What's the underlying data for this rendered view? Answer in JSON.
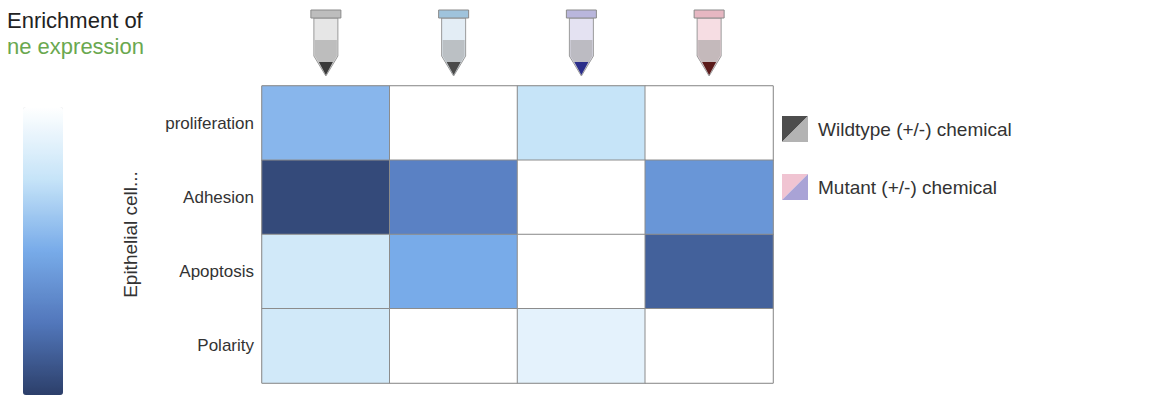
{
  "chart_data": {
    "type": "heatmap",
    "title": "Enrichment of",
    "subtitle": "ne expression",
    "y_label": "Epithelial cell...",
    "categories": [
      null,
      null,
      null,
      null
    ],
    "rows": [
      "proliferation",
      "Adhesion",
      "Apoptosis",
      "Polarity"
    ],
    "cells": [
      [
        0.45,
        0,
        0.25,
        0
      ],
      [
        0.95,
        0.7,
        0,
        0.6
      ],
      [
        0.2,
        0.5,
        0,
        0.85
      ],
      [
        0.2,
        0,
        0.12,
        0
      ]
    ],
    "colorbar": {
      "range": [
        0,
        1
      ]
    },
    "annotations": [
      "Wildtype (+/-) chemical",
      "Mutant (+/-) chemical"
    ],
    "tick_labels": "y",
    "grid": false
  }
}
